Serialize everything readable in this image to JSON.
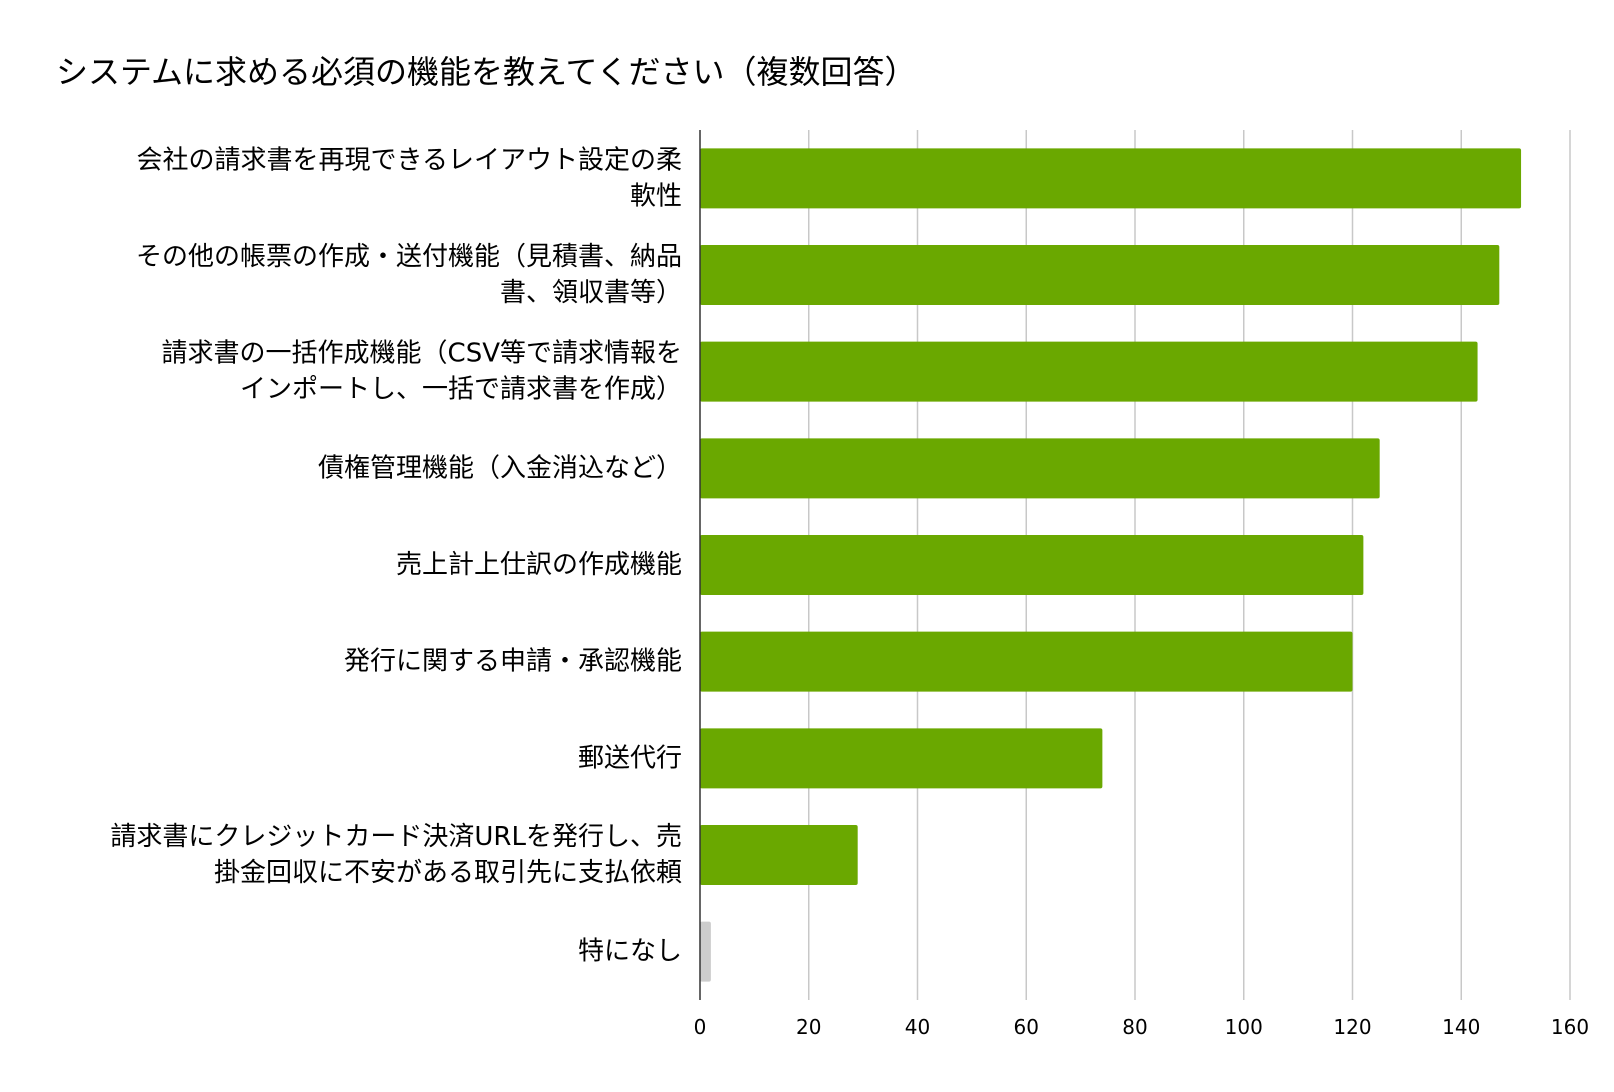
{
  "chart_data": {
    "type": "bar",
    "orientation": "horizontal",
    "title": "システムに求める必須の機能を教えてください（複数回答）",
    "categories": [
      [
        "会社の請求書を再現できるレイアウト設定の柔",
        "軟性"
      ],
      [
        "その他の帳票の作成・送付機能（見積書、納品",
        "書、領収書等）"
      ],
      [
        "請求書の一括作成機能（CSV等で請求情報を",
        "インポートし、一括で請求書を作成）"
      ],
      [
        "債権管理機能（入金消込など）"
      ],
      [
        "売上計上仕訳の作成機能"
      ],
      [
        "発行に関する申請・承認機能"
      ],
      [
        "郵送代行"
      ],
      [
        "請求書にクレジットカード決済URLを発行し、売",
        "掛金回収に不安がある取引先に支払依頼"
      ],
      [
        "特になし"
      ]
    ],
    "values": [
      151,
      147,
      143,
      125,
      122,
      120,
      74,
      29,
      2
    ],
    "bar_colors": [
      "#6aa800",
      "#6aa800",
      "#6aa800",
      "#6aa800",
      "#6aa800",
      "#6aa800",
      "#6aa800",
      "#6aa800",
      "#cccccc"
    ],
    "xlim": [
      0,
      160
    ],
    "x_ticks": [
      0,
      20,
      40,
      60,
      80,
      100,
      120,
      140,
      160
    ],
    "grid": true,
    "legend": "none",
    "xlabel": "",
    "ylabel": ""
  }
}
